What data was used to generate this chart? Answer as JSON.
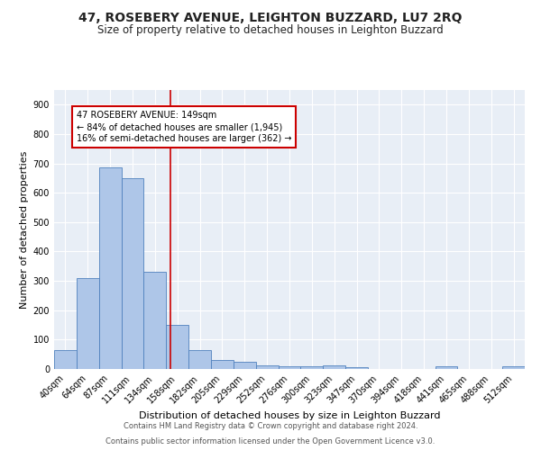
{
  "title": "47, ROSEBERY AVENUE, LEIGHTON BUZZARD, LU7 2RQ",
  "subtitle": "Size of property relative to detached houses in Leighton Buzzard",
  "xlabel": "Distribution of detached houses by size in Leighton Buzzard",
  "ylabel": "Number of detached properties",
  "categories": [
    "40sqm",
    "64sqm",
    "87sqm",
    "111sqm",
    "134sqm",
    "158sqm",
    "182sqm",
    "205sqm",
    "229sqm",
    "252sqm",
    "276sqm",
    "300sqm",
    "323sqm",
    "347sqm",
    "370sqm",
    "394sqm",
    "418sqm",
    "441sqm",
    "465sqm",
    "488sqm",
    "512sqm"
  ],
  "values": [
    65,
    310,
    685,
    650,
    330,
    150,
    65,
    32,
    25,
    12,
    8,
    8,
    12,
    5,
    0,
    0,
    0,
    8,
    0,
    0,
    8
  ],
  "bar_color": "#aec6e8",
  "bar_edge_color": "#4f81bd",
  "vline_x_index": 4.67,
  "vline_color": "#cc0000",
  "ylim": [
    0,
    950
  ],
  "yticks": [
    0,
    100,
    200,
    300,
    400,
    500,
    600,
    700,
    800,
    900
  ],
  "annotation_line1": "47 ROSEBERY AVENUE: 149sqm",
  "annotation_line2": "← 84% of detached houses are smaller (1,945)",
  "annotation_line3": "16% of semi-detached houses are larger (362) →",
  "annotation_box_color": "#ffffff",
  "annotation_box_edge_color": "#cc0000",
  "bg_color": "#e8eef6",
  "footer_line1": "Contains HM Land Registry data © Crown copyright and database right 2024.",
  "footer_line2": "Contains public sector information licensed under the Open Government Licence v3.0.",
  "title_fontsize": 10,
  "subtitle_fontsize": 8.5,
  "axis_label_fontsize": 8,
  "tick_fontsize": 7,
  "annotation_fontsize": 7,
  "footer_fontsize": 6
}
